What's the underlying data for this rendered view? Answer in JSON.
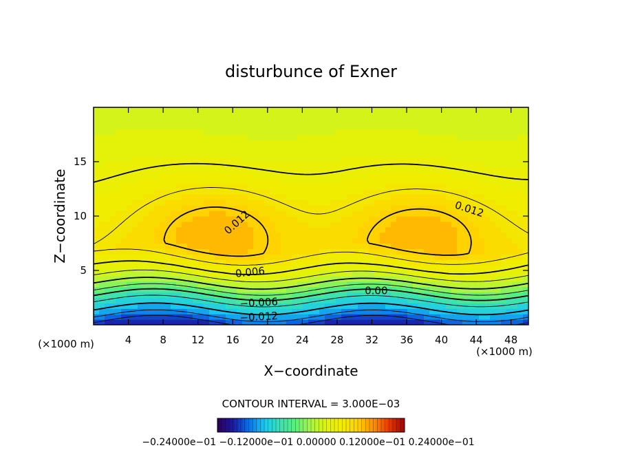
{
  "chart_data": {
    "type": "heatmap",
    "title": "disturbunce of Exner",
    "xlabel": "X−coordinate",
    "ylabel": "Z−coordinate",
    "xlim": [
      0,
      50
    ],
    "ylim": [
      0,
      20
    ],
    "x_ticks": [
      4,
      8,
      12,
      16,
      20,
      24,
      28,
      32,
      36,
      40,
      44,
      48
    ],
    "x_tick_labels": [
      "4",
      "8",
      "12",
      "16",
      "20",
      "24",
      "28",
      "32",
      "36",
      "40",
      "44",
      "48"
    ],
    "y_ticks": [
      5,
      10,
      15
    ],
    "y_tick_labels": [
      "5",
      "10",
      "15"
    ],
    "x_unit_left": "(×1000 m)",
    "x_unit_right": "(×1000 m)",
    "contour_interval_label": "CONTOUR INTERVAL = 3.000E−03",
    "contour_interval": 0.003,
    "colorbar_labels": "−0.24000e−01 −0.12000e−01 0.00000 0.12000e−01 0.24000e−01",
    "colorbar_range": [
      -0.024,
      0.024
    ],
    "colormap": [
      "#2e0050",
      "#1a1aa8",
      "#0a6ee6",
      "#19c8f0",
      "#39e0b4",
      "#59f07a",
      "#a8f546",
      "#e2f20a",
      "#f2ec00",
      "#ffd200",
      "#ff8f00",
      "#e63a00",
      "#a40000"
    ],
    "field": {
      "base_at_z0": -0.02,
      "bands": [
        {
          "z": 0.0,
          "value": -0.02
        },
        {
          "z": 1.0,
          "value": -0.014
        },
        {
          "z": 2.5,
          "value": -0.008
        },
        {
          "z": 3.5,
          "value": -0.002
        },
        {
          "z": 5.0,
          "value": 0.004
        },
        {
          "z": 7.0,
          "value": 0.009
        },
        {
          "z": 19.0,
          "value": 0.003
        }
      ],
      "maxima": [
        {
          "x": 14.5,
          "z": 9.0,
          "value": 0.015
        },
        {
          "x": 38.0,
          "z": 8.8,
          "value": 0.0148
        }
      ]
    },
    "contour_labels": [
      {
        "text": "0.012",
        "x": 16.5,
        "z": 9.4,
        "angle": -42
      },
      {
        "text": "0.012",
        "x": 43.2,
        "z": 10.6,
        "angle": 18
      },
      {
        "text": "0.006",
        "x": 18.0,
        "z": 4.8,
        "angle": -6
      },
      {
        "text": "0.00",
        "x": 32.5,
        "z": 3.1,
        "angle": 0
      },
      {
        "text": "−0.006",
        "x": 19.0,
        "z": 2.0,
        "angle": -3
      },
      {
        "text": "−0.012",
        "x": 19.0,
        "z": 0.7,
        "angle": -3
      }
    ],
    "grid": false
  }
}
